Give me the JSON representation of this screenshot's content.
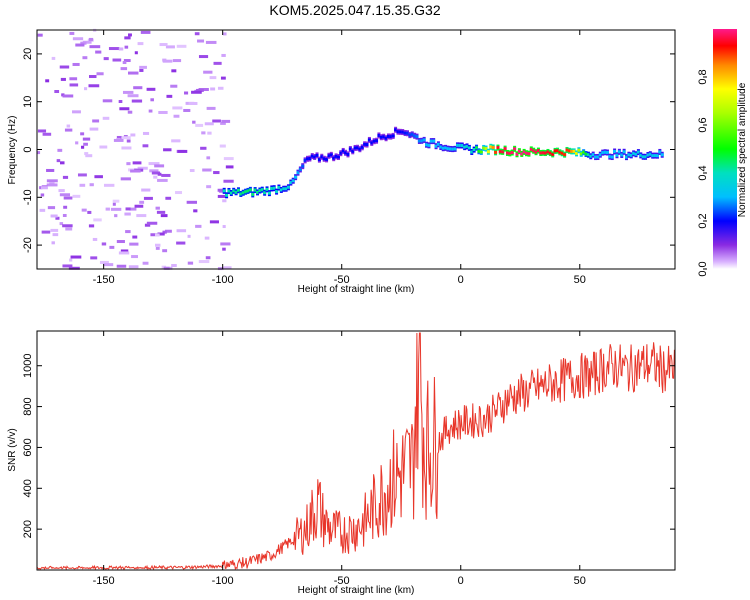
{
  "chart_data": [
    {
      "type": "heatmap",
      "title": "KOM5.2025.047.15.35.G32",
      "xlabel": "Height of straight line (km)",
      "ylabel": "Frequency (Hz)",
      "xlim": [
        -178,
        90
      ],
      "ylim": [
        -25,
        25
      ],
      "xticks": [
        -150,
        -100,
        -50,
        0,
        50
      ],
      "yticks": [
        -20,
        -10,
        0,
        10,
        20
      ],
      "colorbar": {
        "label": "Normalized spectral amplitude",
        "range": [
          0,
          1
        ],
        "ticks": [
          "0.0",
          "0.2",
          "0.4",
          "0.6",
          "0.8"
        ],
        "tick_values": [
          0.0,
          0.2,
          0.4,
          0.6,
          0.8
        ]
      },
      "ridge": [
        {
          "x": -100,
          "y": -9.0,
          "a": 0.4
        },
        {
          "x": -90,
          "y": -9.0,
          "a": 0.45
        },
        {
          "x": -80,
          "y": -8.5,
          "a": 0.4
        },
        {
          "x": -72,
          "y": -7.5,
          "a": 0.35
        },
        {
          "x": -65,
          "y": -2.0,
          "a": 0.2
        },
        {
          "x": -55,
          "y": -1.5,
          "a": 0.2
        },
        {
          "x": -45,
          "y": 0.0,
          "a": 0.2
        },
        {
          "x": -35,
          "y": 2.5,
          "a": 0.2
        },
        {
          "x": -25,
          "y": 4.0,
          "a": 0.2
        },
        {
          "x": -15,
          "y": 1.5,
          "a": 0.3
        },
        {
          "x": -5,
          "y": 0.5,
          "a": 0.3
        },
        {
          "x": 5,
          "y": 0.0,
          "a": 0.4
        },
        {
          "x": 15,
          "y": 0.0,
          "a": 0.95
        },
        {
          "x": 25,
          "y": -0.5,
          "a": 1.0
        },
        {
          "x": 35,
          "y": -0.5,
          "a": 0.95
        },
        {
          "x": 45,
          "y": -0.5,
          "a": 0.9
        },
        {
          "x": 55,
          "y": -1.0,
          "a": 0.3
        },
        {
          "x": 65,
          "y": -1.0,
          "a": 0.3
        },
        {
          "x": 75,
          "y": -1.0,
          "a": 0.35
        },
        {
          "x": 85,
          "y": -1.0,
          "a": 0.3
        }
      ]
    },
    {
      "type": "line",
      "xlabel": "Height of straight line (km)",
      "ylabel": "SNR (v/v)",
      "xlim": [
        -178,
        90
      ],
      "ylim": [
        0,
        1170
      ],
      "xticks": [
        -150,
        -100,
        -50,
        0,
        50
      ],
      "yticks": [
        200,
        400,
        600,
        800,
        1000
      ],
      "series": [
        {
          "color": "#e8362a",
          "x": [
            -178,
            -160,
            -140,
            -120,
            -110,
            -100,
            -90,
            -80,
            -75,
            -70,
            -65,
            -60,
            -58,
            -55,
            -50,
            -45,
            -40,
            -35,
            -30,
            -25,
            -20,
            -18,
            -15,
            -10,
            -5,
            0,
            5,
            10,
            15,
            20,
            30,
            40,
            50,
            55,
            60,
            65,
            70,
            75,
            80,
            85,
            90
          ],
          "y": [
            10,
            10,
            12,
            12,
            15,
            20,
            35,
            70,
            110,
            150,
            200,
            330,
            250,
            200,
            180,
            200,
            240,
            330,
            430,
            470,
            520,
            1070,
            600,
            620,
            700,
            720,
            730,
            740,
            780,
            840,
            880,
            920,
            950,
            950,
            990,
            1000,
            980,
            1000,
            1010,
            980,
            980
          ]
        }
      ]
    }
  ]
}
